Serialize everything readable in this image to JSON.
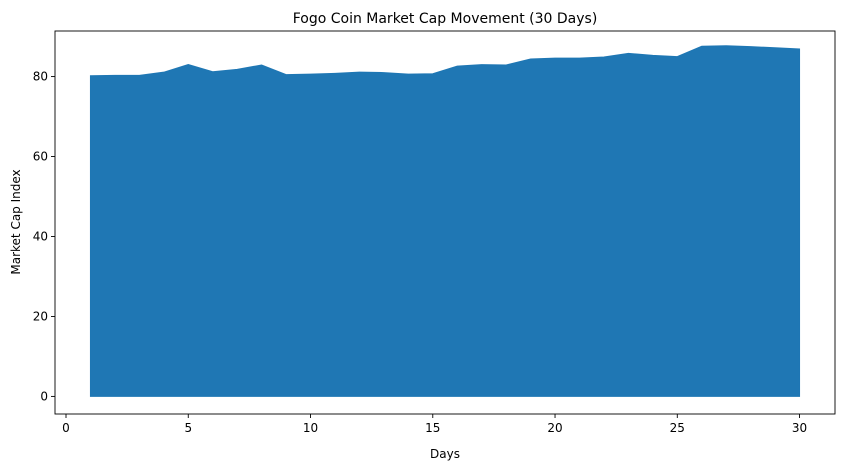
{
  "chart_data": {
    "type": "area",
    "title": "Fogo Coin Market Cap Movement (30 Days)",
    "xlabel": "Days",
    "ylabel": "Market Cap Index",
    "xlim": [
      -0.45,
      31.45
    ],
    "ylim": [
      -4.4,
      91.4
    ],
    "xticks": [
      0,
      5,
      10,
      15,
      20,
      25,
      30
    ],
    "yticks": [
      0,
      20,
      40,
      60,
      80
    ],
    "grid": false,
    "legend": "none",
    "color": "#1f77b4",
    "series": [
      {
        "x": [
          1,
          2,
          3,
          4,
          5,
          6,
          7,
          8,
          9,
          10,
          11,
          12,
          13,
          14,
          15,
          16,
          17,
          18,
          19,
          20,
          21,
          22,
          23,
          24,
          25,
          26,
          27,
          28,
          29,
          30
        ],
        "values": [
          80.2,
          80.3,
          80.3,
          81.1,
          83.0,
          81.2,
          81.8,
          82.9,
          80.5,
          80.6,
          80.8,
          81.1,
          81.0,
          80.6,
          80.7,
          82.6,
          83.0,
          82.9,
          84.4,
          84.6,
          84.6,
          84.9,
          85.8,
          85.3,
          85.0,
          87.6,
          87.7,
          87.5,
          87.2,
          86.9
        ]
      }
    ]
  }
}
